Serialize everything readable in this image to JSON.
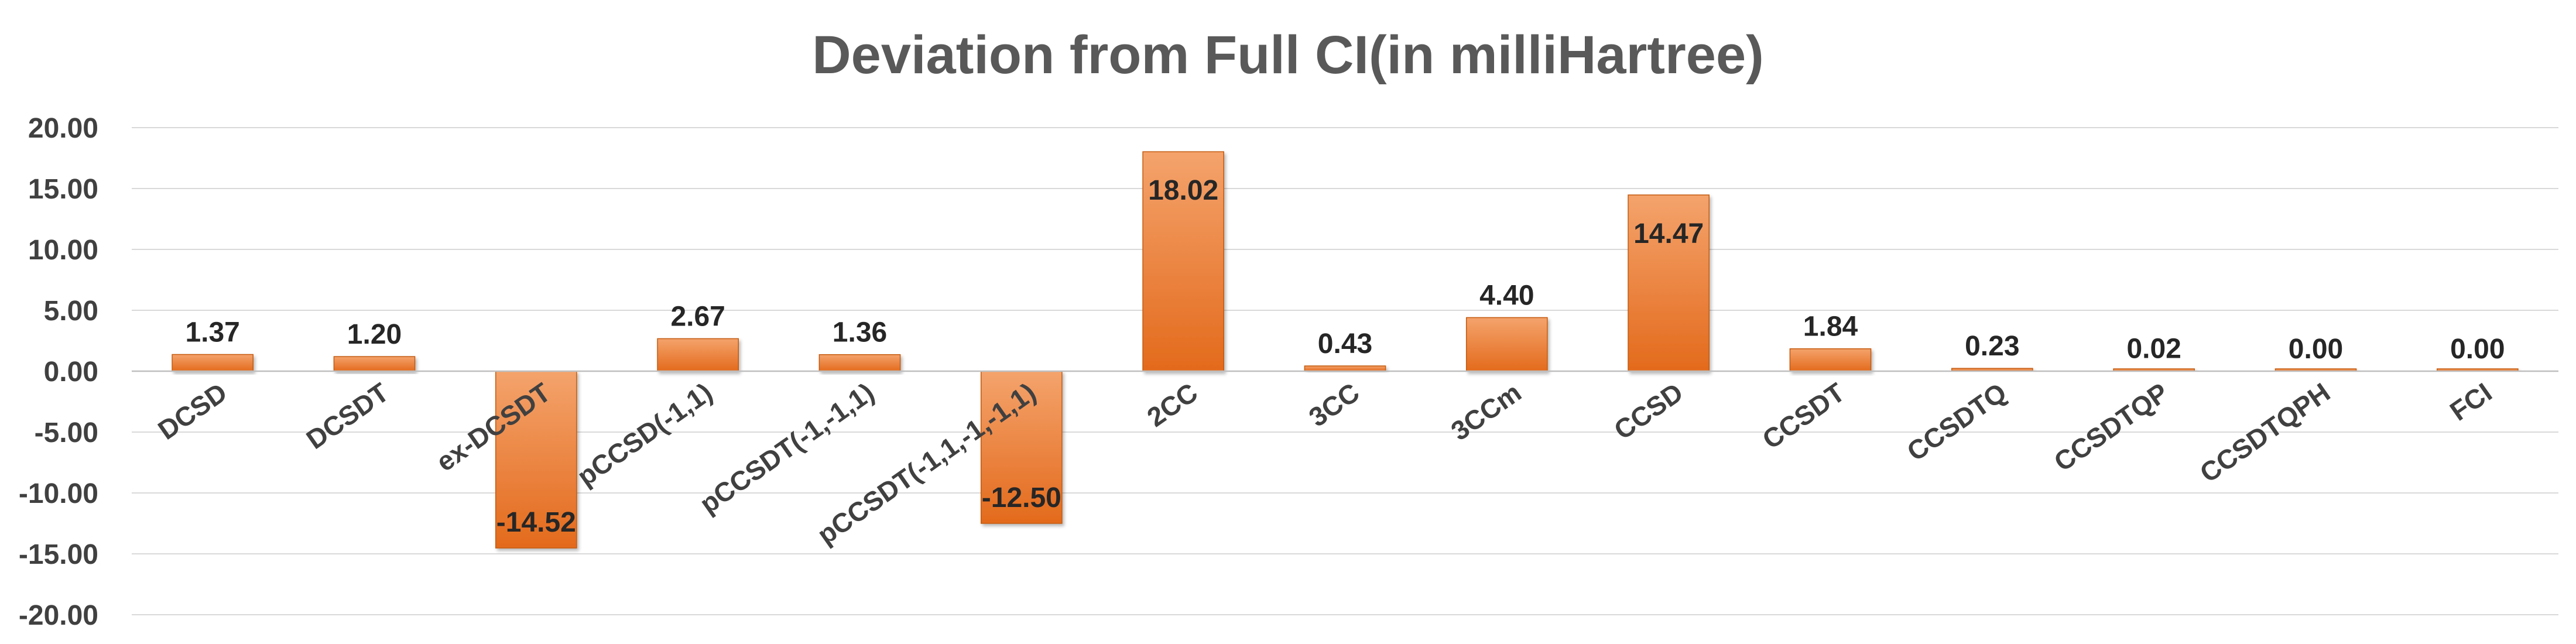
{
  "chart_data": {
    "type": "bar",
    "title": "Deviation from Full CI(in milliHartree)",
    "xlabel": "",
    "ylabel": "",
    "categories": [
      "DCSD",
      "DCSDT",
      "ex-DCSDT",
      "pCCSD(-1,1)",
      "pCCSDT(-1,-1,1)",
      "pCCSDT(-1,1,-1,-1,1)",
      "2CC",
      "3CC",
      "3CCm",
      "CCSD",
      "CCSDT",
      "CCSDTQ",
      "CCSDTQP",
      "CCSDTQPH",
      "FCI"
    ],
    "values": [
      1.37,
      1.2,
      -14.52,
      2.67,
      1.36,
      -12.5,
      18.02,
      0.43,
      4.4,
      14.47,
      1.84,
      0.23,
      0.02,
      0.0,
      0.0
    ],
    "data_labels": [
      "1.37",
      "1.20",
      "-14.52",
      "2.67",
      "1.36",
      "-12.50",
      "18.02",
      "0.43",
      "4.40",
      "14.47",
      "1.84",
      "0.23",
      "0.02",
      "0.00",
      "0.00"
    ],
    "ylim": [
      -20,
      20
    ],
    "y_ticks": [
      20,
      15,
      10,
      5,
      0,
      -5,
      -10,
      -15,
      -20
    ],
    "y_tick_labels": [
      "20.00",
      "15.00",
      "10.00",
      "5.00",
      "0.00",
      "-5.00",
      "-10.00",
      "-15.00",
      "-20.00"
    ],
    "grid": true,
    "legend": "none",
    "colors": {
      "bar_top": "#f4a36c",
      "bar_bottom": "#e36a1c",
      "bar_edge": "#c55a11"
    }
  }
}
